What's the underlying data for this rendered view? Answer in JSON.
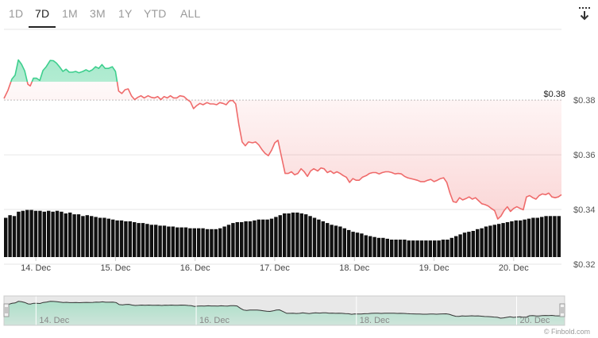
{
  "tabs": [
    {
      "label": "1D",
      "active": false
    },
    {
      "label": "7D",
      "active": true
    },
    {
      "label": "1M",
      "active": false
    },
    {
      "label": "3M",
      "active": false
    },
    {
      "label": "1Y",
      "active": false
    },
    {
      "label": "YTD",
      "active": false
    },
    {
      "label": "ALL",
      "active": false
    }
  ],
  "download_icon": "download-icon",
  "credit": "© Finbold.com",
  "colors": {
    "up": "#3ecf8e",
    "down": "#ef6b6b",
    "volume": "#111111",
    "grid": "#e6e6e6",
    "navigator_bg": "#e8e8e8"
  },
  "chart_data": {
    "type": "line",
    "reference_label": "$0.38",
    "reference_value": 0.38,
    "ylim": [
      0.32,
      0.405
    ],
    "y_ticks": [
      "$0.38",
      "$0.36",
      "$0.34",
      "$0.32"
    ],
    "y_tick_values": [
      0.38,
      0.36,
      0.34,
      0.32
    ],
    "x_ticks": [
      "14. Dec",
      "15. Dec",
      "16. Dec",
      "17. Dec",
      "18. Dec",
      "19. Dec",
      "20. Dec"
    ],
    "x_tick_values": [
      0.4,
      1.4,
      2.4,
      3.4,
      4.4,
      5.4,
      6.4
    ],
    "xlim": [
      0,
      7
    ],
    "series": [
      {
        "values": [
          [
            0.0,
            0.3806
          ],
          [
            0.05,
            0.3836
          ],
          [
            0.1,
            0.3877
          ],
          [
            0.14,
            0.3891
          ],
          [
            0.18,
            0.3947
          ],
          [
            0.22,
            0.3931
          ],
          [
            0.26,
            0.3907
          ],
          [
            0.3,
            0.3858
          ],
          [
            0.33,
            0.3852
          ],
          [
            0.37,
            0.388
          ],
          [
            0.41,
            0.388
          ],
          [
            0.45,
            0.3872
          ],
          [
            0.49,
            0.3908
          ],
          [
            0.53,
            0.3922
          ],
          [
            0.58,
            0.3945
          ],
          [
            0.62,
            0.3944
          ],
          [
            0.66,
            0.3935
          ],
          [
            0.7,
            0.3921
          ],
          [
            0.74,
            0.3905
          ],
          [
            0.78,
            0.3913
          ],
          [
            0.82,
            0.3902
          ],
          [
            0.86,
            0.3902
          ],
          [
            0.9,
            0.3905
          ],
          [
            0.94,
            0.39
          ],
          [
            0.99,
            0.3905
          ],
          [
            1.03,
            0.3911
          ],
          [
            1.07,
            0.3905
          ],
          [
            1.11,
            0.3911
          ],
          [
            1.15,
            0.3922
          ],
          [
            1.19,
            0.3916
          ],
          [
            1.23,
            0.393
          ],
          [
            1.27,
            0.3916
          ],
          [
            1.31,
            0.3916
          ],
          [
            1.36,
            0.3922
          ],
          [
            1.4,
            0.3905
          ],
          [
            1.44,
            0.3833
          ],
          [
            1.48,
            0.3824
          ],
          [
            1.52,
            0.3838
          ],
          [
            1.56,
            0.3841
          ],
          [
            1.6,
            0.3816
          ],
          [
            1.64,
            0.3802
          ],
          [
            1.68,
            0.381
          ],
          [
            1.72,
            0.3816
          ],
          [
            1.76,
            0.3808
          ],
          [
            1.81,
            0.3816
          ],
          [
            1.85,
            0.381
          ],
          [
            1.89,
            0.3808
          ],
          [
            1.93,
            0.3813
          ],
          [
            1.97,
            0.3802
          ],
          [
            2.01,
            0.3813
          ],
          [
            2.05,
            0.3808
          ],
          [
            2.09,
            0.3816
          ],
          [
            2.13,
            0.3808
          ],
          [
            2.17,
            0.3808
          ],
          [
            2.21,
            0.3816
          ],
          [
            2.26,
            0.3813
          ],
          [
            2.3,
            0.3802
          ],
          [
            2.34,
            0.3794
          ],
          [
            2.38,
            0.3769
          ],
          [
            2.42,
            0.378
          ],
          [
            2.46,
            0.3788
          ],
          [
            2.5,
            0.3783
          ],
          [
            2.55,
            0.3791
          ],
          [
            2.59,
            0.3786
          ],
          [
            2.63,
            0.3786
          ],
          [
            2.67,
            0.3783
          ],
          [
            2.71,
            0.3791
          ],
          [
            2.75,
            0.3788
          ],
          [
            2.79,
            0.3783
          ],
          [
            2.83,
            0.3797
          ],
          [
            2.87,
            0.3799
          ],
          [
            2.91,
            0.3786
          ],
          [
            2.95,
            0.371
          ],
          [
            2.99,
            0.3647
          ],
          [
            3.03,
            0.3633
          ],
          [
            3.07,
            0.3647
          ],
          [
            3.12,
            0.3644
          ],
          [
            3.16,
            0.3647
          ],
          [
            3.2,
            0.3636
          ],
          [
            3.24,
            0.3619
          ],
          [
            3.28,
            0.3605
          ],
          [
            3.32,
            0.3597
          ],
          [
            3.36,
            0.3617
          ],
          [
            3.4,
            0.3644
          ],
          [
            3.44,
            0.3653
          ],
          [
            3.48,
            0.3599
          ],
          [
            3.53,
            0.3532
          ],
          [
            3.57,
            0.3532
          ],
          [
            3.61,
            0.3538
          ],
          [
            3.65,
            0.3527
          ],
          [
            3.69,
            0.3532
          ],
          [
            3.73,
            0.3549
          ],
          [
            3.77,
            0.3538
          ],
          [
            3.81,
            0.3521
          ],
          [
            3.85,
            0.3541
          ],
          [
            3.89,
            0.3549
          ],
          [
            3.94,
            0.3541
          ],
          [
            3.98,
            0.3552
          ],
          [
            4.02,
            0.3549
          ],
          [
            4.06,
            0.3535
          ],
          [
            4.1,
            0.3541
          ],
          [
            4.14,
            0.3532
          ],
          [
            4.18,
            0.3538
          ],
          [
            4.22,
            0.3532
          ],
          [
            4.26,
            0.3524
          ],
          [
            4.3,
            0.3518
          ],
          [
            4.34,
            0.3499
          ],
          [
            4.38,
            0.3513
          ],
          [
            4.42,
            0.3507
          ],
          [
            4.46,
            0.3507
          ],
          [
            4.5,
            0.3518
          ],
          [
            4.55,
            0.3524
          ],
          [
            4.59,
            0.3532
          ],
          [
            4.63,
            0.3535
          ],
          [
            4.67,
            0.3535
          ],
          [
            4.71,
            0.353
          ],
          [
            4.75,
            0.3535
          ],
          [
            4.79,
            0.3538
          ],
          [
            4.83,
            0.3538
          ],
          [
            4.87,
            0.3535
          ],
          [
            4.91,
            0.353
          ],
          [
            4.95,
            0.3532
          ],
          [
            4.99,
            0.353
          ],
          [
            5.03,
            0.3521
          ],
          [
            5.07,
            0.3516
          ],
          [
            5.11,
            0.3513
          ],
          [
            5.15,
            0.351
          ],
          [
            5.19,
            0.3507
          ],
          [
            5.23,
            0.3502
          ],
          [
            5.28,
            0.3502
          ],
          [
            5.32,
            0.3507
          ],
          [
            5.36,
            0.351
          ],
          [
            5.4,
            0.3502
          ],
          [
            5.44,
            0.3507
          ],
          [
            5.48,
            0.3513
          ],
          [
            5.52,
            0.3516
          ],
          [
            5.56,
            0.3499
          ],
          [
            5.6,
            0.346
          ],
          [
            5.64,
            0.3429
          ],
          [
            5.68,
            0.3426
          ],
          [
            5.72,
            0.3443
          ],
          [
            5.76,
            0.3435
          ],
          [
            5.8,
            0.344
          ],
          [
            5.84,
            0.3446
          ],
          [
            5.88,
            0.3438
          ],
          [
            5.92,
            0.3443
          ],
          [
            5.96,
            0.3432
          ],
          [
            6.0,
            0.3421
          ],
          [
            6.04,
            0.3418
          ],
          [
            6.08,
            0.3413
          ],
          [
            6.12,
            0.3404
          ],
          [
            6.16,
            0.3396
          ],
          [
            6.2,
            0.3365
          ],
          [
            6.24,
            0.3376
          ],
          [
            6.28,
            0.3396
          ],
          [
            6.32,
            0.341
          ],
          [
            6.36,
            0.3393
          ],
          [
            6.4,
            0.3404
          ],
          [
            6.44,
            0.341
          ],
          [
            6.48,
            0.3404
          ],
          [
            6.52,
            0.3399
          ],
          [
            6.56,
            0.3446
          ],
          [
            6.6,
            0.3451
          ],
          [
            6.64,
            0.3443
          ],
          [
            6.68,
            0.3438
          ],
          [
            6.72,
            0.3451
          ],
          [
            6.76,
            0.3457
          ],
          [
            6.8,
            0.3454
          ],
          [
            6.84,
            0.346
          ],
          [
            6.88,
            0.3446
          ],
          [
            6.92,
            0.3443
          ],
          [
            6.96,
            0.3446
          ],
          [
            7.0,
            0.3454
          ]
        ]
      }
    ],
    "volume": {
      "values": [
        0.45,
        0.48,
        0.47,
        0.52,
        0.53,
        0.54,
        0.54,
        0.53,
        0.53,
        0.52,
        0.53,
        0.52,
        0.53,
        0.52,
        0.5,
        0.51,
        0.49,
        0.49,
        0.47,
        0.48,
        0.47,
        0.46,
        0.45,
        0.45,
        0.44,
        0.43,
        0.42,
        0.42,
        0.41,
        0.41,
        0.4,
        0.39,
        0.39,
        0.38,
        0.37,
        0.37,
        0.36,
        0.36,
        0.35,
        0.35,
        0.34,
        0.34,
        0.34,
        0.33,
        0.33,
        0.33,
        0.33,
        0.32,
        0.32,
        0.32,
        0.33,
        0.35,
        0.37,
        0.39,
        0.4,
        0.4,
        0.41,
        0.41,
        0.42,
        0.43,
        0.43,
        0.43,
        0.44,
        0.46,
        0.48,
        0.5,
        0.5,
        0.51,
        0.51,
        0.5,
        0.49,
        0.47,
        0.45,
        0.43,
        0.41,
        0.39,
        0.37,
        0.36,
        0.35,
        0.33,
        0.31,
        0.29,
        0.28,
        0.27,
        0.25,
        0.24,
        0.23,
        0.22,
        0.22,
        0.21,
        0.2,
        0.2,
        0.2,
        0.2,
        0.19,
        0.19,
        0.19,
        0.19,
        0.19,
        0.19,
        0.19,
        0.19,
        0.2,
        0.2,
        0.22,
        0.24,
        0.26,
        0.28,
        0.29,
        0.3,
        0.32,
        0.33,
        0.35,
        0.36,
        0.37,
        0.38,
        0.39,
        0.4,
        0.41,
        0.42,
        0.42,
        0.43,
        0.44,
        0.45,
        0.45,
        0.46,
        0.47,
        0.47,
        0.47,
        0.47
      ]
    },
    "navigator": {
      "x_ticks": [
        "14. Dec",
        "16. Dec",
        "18. Dec",
        "20. Dec"
      ],
      "x_tick_values": [
        0.4,
        2.4,
        4.4,
        6.4
      ]
    },
    "grid": true
  }
}
